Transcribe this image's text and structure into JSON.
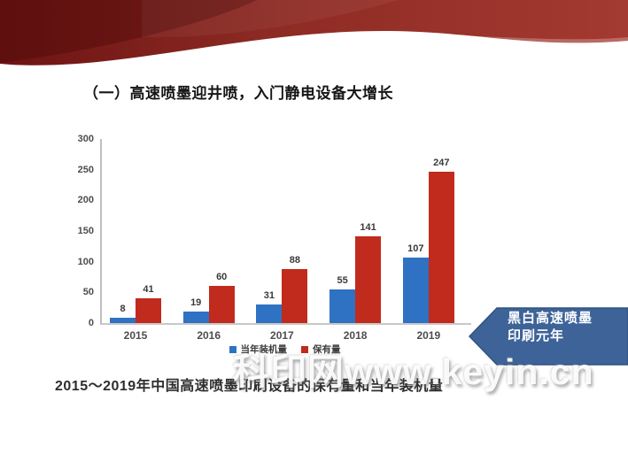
{
  "slide": {
    "title": "（一）高速喷墨迎井喷，入门静电设备大增长",
    "caption": "2015～2019年中国高速喷墨印刷设备的保有量和当年装机量",
    "watermark": "科印网www.keyin.cn",
    "callout": {
      "line1": "黑白高速喷墨",
      "line2": "印刷元年",
      "color": "#3d6399"
    },
    "header_colors": {
      "dark": "#6d1413",
      "mid": "#97312a",
      "light": "#a43a31"
    }
  },
  "chart_data": {
    "type": "bar",
    "categories": [
      "2015",
      "2016",
      "2017",
      "2018",
      "2019"
    ],
    "series": [
      {
        "name": "当年装机量",
        "color": "#2f72c3",
        "values": [
          8,
          19,
          31,
          55,
          107
        ]
      },
      {
        "name": "保有量",
        "color": "#c02b1d",
        "values": [
          41,
          60,
          88,
          141,
          247
        ]
      }
    ],
    "title": "",
    "xlabel": "",
    "ylabel": "",
    "ylim": [
      0,
      300
    ],
    "ytick_step": 50,
    "grid": false,
    "legend_position": "bottom"
  }
}
